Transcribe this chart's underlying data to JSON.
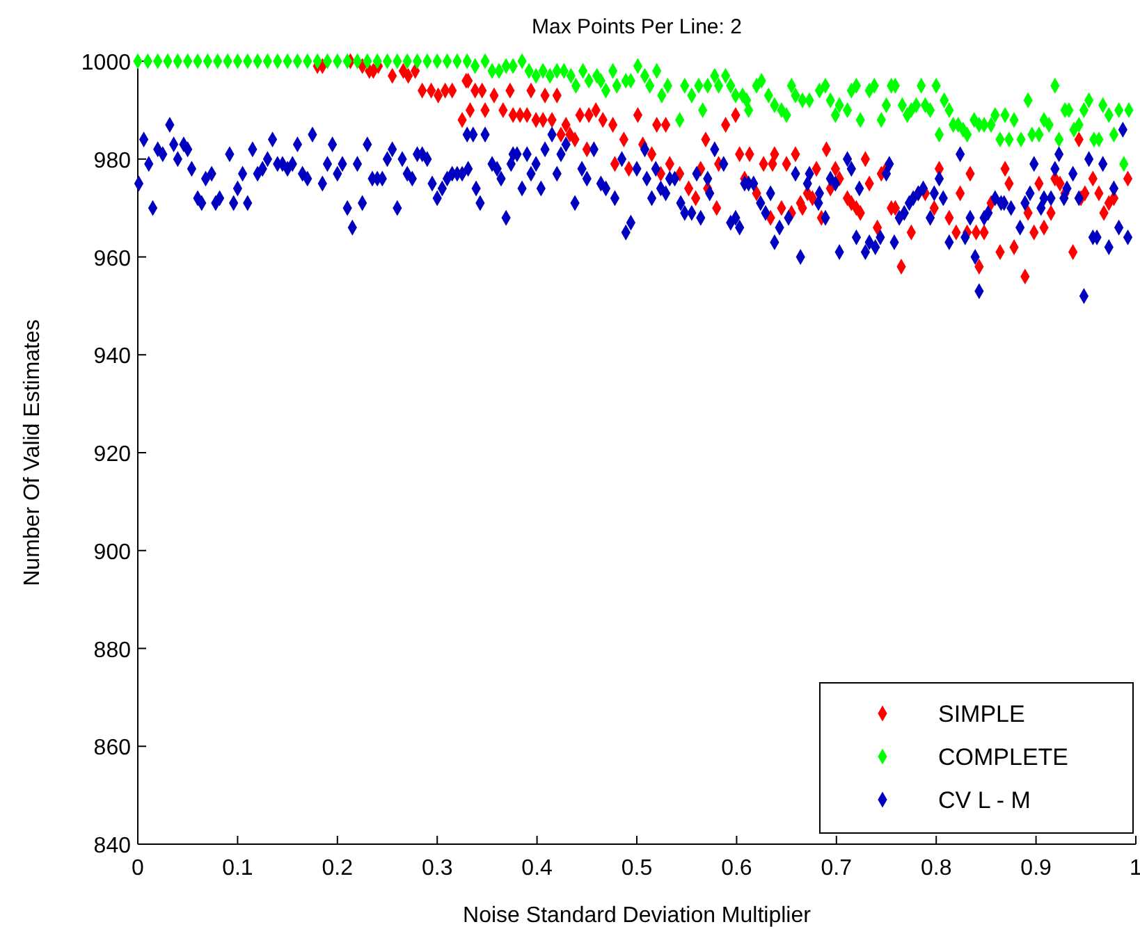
{
  "chart_data": {
    "type": "scatter",
    "title": "Max Points Per Line: 2",
    "xlabel": "Noise Standard Deviation Multiplier",
    "ylabel": "Number Of Valid Estimates",
    "xlim": [
      0,
      1
    ],
    "xticks": [
      0,
      0.1,
      0.2,
      0.3,
      0.4,
      0.5,
      0.6,
      0.7,
      0.8,
      0.9,
      1
    ],
    "ylim": [
      840,
      1000
    ],
    "yticks": [
      840,
      860,
      880,
      900,
      920,
      940,
      960,
      980,
      1000
    ],
    "grid": false,
    "legend": "bottom right",
    "marker": "diamond",
    "series": [
      {
        "name": "SIMPLE",
        "color": "#ff0000",
        "x": [
          0.18,
          0.185,
          0.213,
          0.225,
          0.232,
          0.236,
          0.241,
          0.255,
          0.266,
          0.271,
          0.278,
          0.285,
          0.294,
          0.301,
          0.308,
          0.315,
          0.325,
          0.329,
          0.331,
          0.333,
          0.338,
          0.345,
          0.348,
          0.357,
          0.366,
          0.373,
          0.376,
          0.383,
          0.39,
          0.394,
          0.399,
          0.406,
          0.408,
          0.415,
          0.42,
          0.424,
          0.429,
          0.433,
          0.438,
          0.443,
          0.45,
          0.452,
          0.459,
          0.466,
          0.476,
          0.478,
          0.487,
          0.492,
          0.501,
          0.506,
          0.515,
          0.52,
          0.524,
          0.529,
          0.533,
          0.543,
          0.552,
          0.559,
          0.564,
          0.569,
          0.571,
          0.58,
          0.582,
          0.589,
          0.599,
          0.603,
          0.608,
          0.613,
          0.62,
          0.627,
          0.634,
          0.636,
          0.638,
          0.645,
          0.65,
          0.655,
          0.659,
          0.664,
          0.666,
          0.671,
          0.676,
          0.68,
          0.685,
          0.69,
          0.694,
          0.699,
          0.703,
          0.711,
          0.715,
          0.72,
          0.724,
          0.729,
          0.733,
          0.741,
          0.745,
          0.75,
          0.755,
          0.759,
          0.765,
          0.775,
          0.782,
          0.789,
          0.798,
          0.803,
          0.813,
          0.82,
          0.824,
          0.831,
          0.834,
          0.84,
          0.843,
          0.848,
          0.855,
          0.864,
          0.869,
          0.873,
          0.878,
          0.889,
          0.892,
          0.898,
          0.903,
          0.908,
          0.915,
          0.919,
          0.924,
          0.929,
          0.937,
          0.943,
          0.945,
          0.949,
          0.957,
          0.963,
          0.968,
          0.973,
          0.978,
          0.992
        ],
        "values": [
          999,
          999,
          1000,
          999,
          998,
          998,
          999,
          997,
          998,
          997,
          998,
          994,
          994,
          993,
          994,
          994,
          988,
          996,
          996,
          990,
          994,
          994,
          990,
          993,
          990,
          994,
          989,
          989,
          989,
          994,
          988,
          988,
          993,
          988,
          993,
          985,
          987,
          985,
          984,
          989,
          982,
          989,
          990,
          988,
          987,
          979,
          984,
          978,
          989,
          983,
          981,
          987,
          977,
          987,
          979,
          977,
          974,
          972,
          978,
          984,
          974,
          970,
          979,
          987,
          989,
          981,
          976,
          981,
          973,
          979,
          968,
          979,
          981,
          970,
          979,
          969,
          981,
          971,
          970,
          973,
          972,
          978,
          968,
          982,
          974,
          978,
          976,
          972,
          971,
          970,
          969,
          980,
          975,
          966,
          977,
          978,
          970,
          970,
          958,
          965,
          973,
          973,
          970,
          978,
          968,
          965,
          973,
          965,
          977,
          965,
          958,
          965,
          971,
          961,
          978,
          975,
          962,
          956,
          969,
          965,
          975,
          966,
          969,
          976,
          975,
          973,
          961,
          984,
          972,
          973,
          976,
          973,
          969,
          971,
          972,
          976
        ]
      },
      {
        "name": "COMPLETE",
        "color": "#00ff00",
        "x": [
          0,
          0.01,
          0.02,
          0.03,
          0.04,
          0.05,
          0.06,
          0.07,
          0.08,
          0.09,
          0.1,
          0.11,
          0.12,
          0.13,
          0.14,
          0.15,
          0.16,
          0.17,
          0.18,
          0.19,
          0.2,
          0.21,
          0.22,
          0.23,
          0.24,
          0.25,
          0.26,
          0.27,
          0.28,
          0.29,
          0.3,
          0.31,
          0.32,
          0.33,
          0.338,
          0.348,
          0.355,
          0.362,
          0.369,
          0.376,
          0.385,
          0.392,
          0.399,
          0.406,
          0.413,
          0.42,
          0.427,
          0.434,
          0.439,
          0.446,
          0.452,
          0.46,
          0.464,
          0.469,
          0.476,
          0.48,
          0.489,
          0.494,
          0.501,
          0.508,
          0.513,
          0.52,
          0.525,
          0.531,
          0.543,
          0.548,
          0.555,
          0.562,
          0.566,
          0.571,
          0.578,
          0.582,
          0.589,
          0.594,
          0.599,
          0.606,
          0.61,
          0.612,
          0.62,
          0.625,
          0.632,
          0.638,
          0.645,
          0.65,
          0.655,
          0.659,
          0.666,
          0.673,
          0.683,
          0.689,
          0.694,
          0.699,
          0.703,
          0.711,
          0.715,
          0.72,
          0.724,
          0.733,
          0.738,
          0.745,
          0.75,
          0.755,
          0.759,
          0.766,
          0.771,
          0.775,
          0.78,
          0.785,
          0.789,
          0.794,
          0.8,
          0.803,
          0.808,
          0.813,
          0.817,
          0.822,
          0.827,
          0.831,
          0.838,
          0.843,
          0.848,
          0.855,
          0.859,
          0.864,
          0.869,
          0.873,
          0.878,
          0.885,
          0.892,
          0.896,
          0.903,
          0.908,
          0.913,
          0.919,
          0.923,
          0.929,
          0.933,
          0.938,
          0.943,
          0.948,
          0.953,
          0.958,
          0.963,
          0.967,
          0.973,
          0.978,
          0.983,
          0.988,
          0.993
        ],
        "values": [
          1000,
          1000,
          1000,
          1000,
          1000,
          1000,
          1000,
          1000,
          1000,
          1000,
          1000,
          1000,
          1000,
          1000,
          1000,
          1000,
          1000,
          1000,
          1000,
          1000,
          1000,
          1000,
          1000,
          1000,
          1000,
          1000,
          1000,
          1000,
          1000,
          1000,
          1000,
          1000,
          1000,
          1000,
          999,
          1000,
          998,
          998,
          999,
          999,
          1000,
          998,
          997,
          998,
          997,
          998,
          998,
          997,
          995,
          998,
          996,
          997,
          996,
          994,
          998,
          995,
          996,
          996,
          999,
          997,
          995,
          998,
          993,
          995,
          988,
          995,
          993,
          995,
          990,
          995,
          997,
          995,
          997,
          995,
          993,
          993,
          992,
          990,
          995,
          996,
          993,
          991,
          990,
          989,
          995,
          993,
          992,
          992,
          994,
          995,
          992,
          989,
          991,
          990,
          994,
          995,
          988,
          994,
          995,
          988,
          991,
          995,
          995,
          991,
          989,
          990,
          991,
          995,
          991,
          990,
          995,
          985,
          992,
          990,
          987,
          987,
          986,
          985,
          988,
          987,
          987,
          987,
          989,
          984,
          989,
          984,
          988,
          984,
          992,
          985,
          985,
          988,
          987,
          995,
          984,
          990,
          990,
          986,
          987,
          990,
          992,
          984,
          984,
          991,
          989,
          985,
          990,
          979,
          990
        ]
      },
      {
        "name": "CV L - M",
        "color": "#0000c0",
        "x": [
          0.001,
          0.006,
          0.011,
          0.015,
          0.02,
          0.025,
          0.032,
          0.036,
          0.04,
          0.046,
          0.05,
          0.054,
          0.06,
          0.064,
          0.068,
          0.074,
          0.078,
          0.082,
          0.092,
          0.096,
          0.1,
          0.105,
          0.11,
          0.115,
          0.12,
          0.125,
          0.13,
          0.135,
          0.14,
          0.145,
          0.15,
          0.155,
          0.16,
          0.165,
          0.17,
          0.175,
          0.185,
          0.19,
          0.195,
          0.2,
          0.205,
          0.21,
          0.215,
          0.22,
          0.225,
          0.23,
          0.235,
          0.24,
          0.245,
          0.25,
          0.255,
          0.26,
          0.265,
          0.27,
          0.275,
          0.28,
          0.285,
          0.29,
          0.295,
          0.3,
          0.305,
          0.31,
          0.315,
          0.32,
          0.325,
          0.33,
          0.331,
          0.336,
          0.339,
          0.343,
          0.348,
          0.355,
          0.36,
          0.364,
          0.369,
          0.374,
          0.376,
          0.38,
          0.385,
          0.39,
          0.394,
          0.399,
          0.404,
          0.408,
          0.415,
          0.42,
          0.424,
          0.429,
          0.438,
          0.445,
          0.45,
          0.457,
          0.464,
          0.469,
          0.478,
          0.485,
          0.489,
          0.494,
          0.5,
          0.508,
          0.51,
          0.515,
          0.519,
          0.524,
          0.529,
          0.533,
          0.538,
          0.544,
          0.548,
          0.555,
          0.56,
          0.564,
          0.571,
          0.573,
          0.578,
          0.587,
          0.594,
          0.599,
          0.603,
          0.608,
          0.612,
          0.617,
          0.624,
          0.629,
          0.634,
          0.638,
          0.643,
          0.652,
          0.659,
          0.664,
          0.671,
          0.673,
          0.682,
          0.683,
          0.689,
          0.694,
          0.699,
          0.703,
          0.711,
          0.715,
          0.72,
          0.723,
          0.729,
          0.733,
          0.739,
          0.744,
          0.75,
          0.753,
          0.758,
          0.763,
          0.768,
          0.773,
          0.777,
          0.782,
          0.787,
          0.794,
          0.798,
          0.803,
          0.807,
          0.813,
          0.824,
          0.829,
          0.834,
          0.839,
          0.843,
          0.848,
          0.852,
          0.859,
          0.865,
          0.868,
          0.875,
          0.884,
          0.889,
          0.894,
          0.898,
          0.905,
          0.908,
          0.915,
          0.919,
          0.923,
          0.928,
          0.931,
          0.937,
          0.943,
          0.948,
          0.953,
          0.957,
          0.961,
          0.967,
          0.973,
          0.978,
          0.983,
          0.987,
          0.992
        ],
        "values": [
          975,
          984,
          979,
          970,
          982,
          981,
          987,
          983,
          980,
          983,
          982,
          978,
          972,
          971,
          976,
          977,
          971,
          972,
          981,
          971,
          974,
          977,
          971,
          982,
          977,
          978,
          980,
          984,
          979,
          979,
          978,
          979,
          983,
          977,
          976,
          985,
          975,
          979,
          983,
          977,
          979,
          970,
          966,
          979,
          971,
          983,
          976,
          976,
          976,
          980,
          982,
          970,
          980,
          977,
          976,
          981,
          981,
          980,
          975,
          972,
          974,
          976,
          977,
          977,
          977,
          985,
          978,
          985,
          974,
          971,
          985,
          979,
          978,
          976,
          968,
          979,
          981,
          981,
          974,
          981,
          977,
          979,
          974,
          982,
          985,
          977,
          981,
          983,
          971,
          978,
          976,
          982,
          975,
          974,
          972,
          980,
          965,
          967,
          978,
          982,
          976,
          972,
          978,
          974,
          973,
          976,
          976,
          971,
          969,
          969,
          977,
          968,
          976,
          973,
          982,
          979,
          967,
          968,
          966,
          975,
          975,
          975,
          971,
          969,
          973,
          963,
          966,
          968,
          977,
          960,
          975,
          977,
          971,
          973,
          968,
          976,
          975,
          961,
          980,
          978,
          964,
          974,
          961,
          963,
          962,
          964,
          977,
          979,
          963,
          968,
          969,
          971,
          972,
          973,
          974,
          968,
          973,
          976,
          972,
          963,
          981,
          964,
          968,
          960,
          953,
          968,
          969,
          972,
          971,
          971,
          970,
          966,
          971,
          973,
          979,
          970,
          972,
          972,
          978,
          981,
          972,
          974,
          977,
          972,
          952,
          980,
          964,
          964,
          979,
          962,
          974,
          966,
          986,
          964
        ]
      }
    ]
  }
}
